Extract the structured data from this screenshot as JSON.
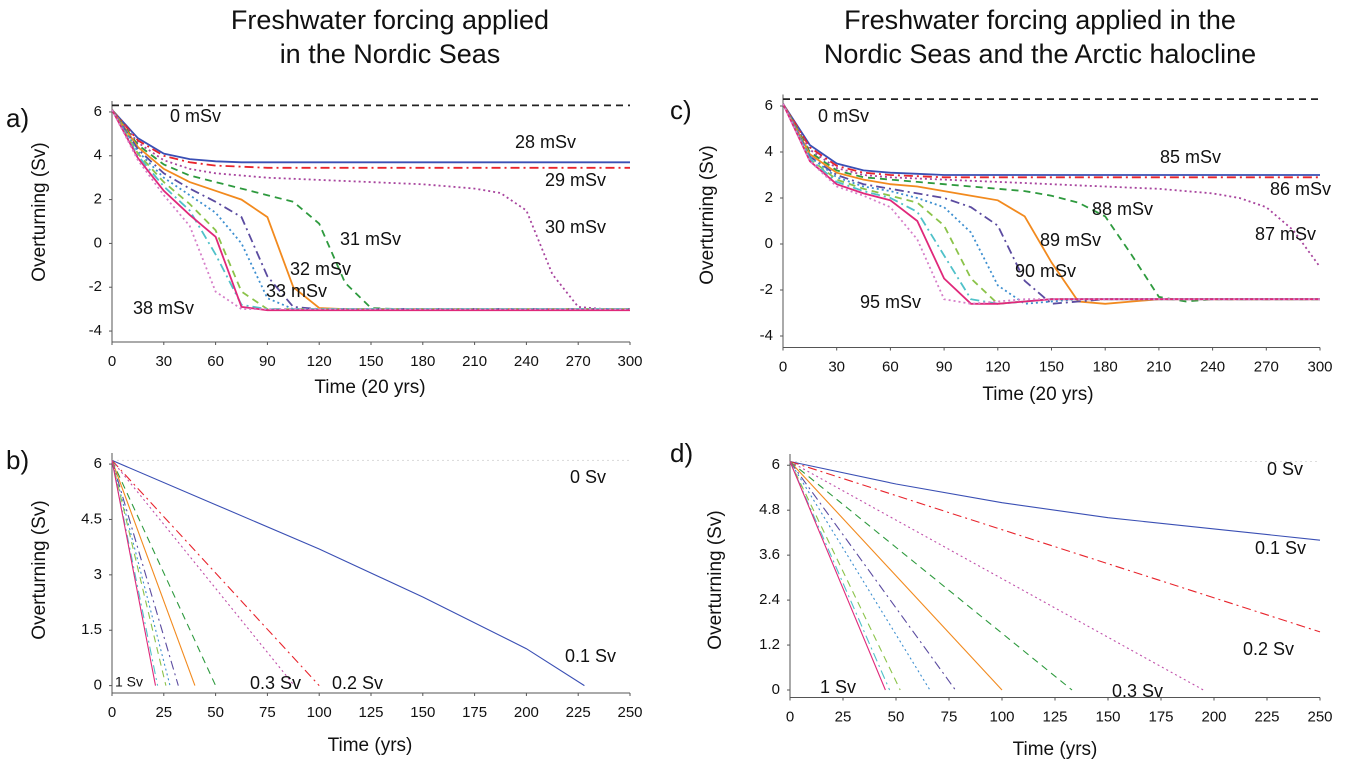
{
  "headings": [
    [
      "Freshwater forcing applied",
      "in the Nordic Seas"
    ],
    [
      "Freshwater forcing applied in the",
      "Nordic Seas and the Arctic halocline"
    ]
  ],
  "chart_data": [
    {
      "type": "line",
      "panel": "a)",
      "xlabel": "Time (20 yrs)",
      "ylabel": "Overturning (Sv)",
      "xlim": [
        0,
        300
      ],
      "xticks": [
        0,
        30,
        60,
        90,
        120,
        150,
        180,
        210,
        240,
        270,
        300
      ],
      "ylim": [
        -4.5,
        6.5
      ],
      "yticks": [
        -4,
        -2,
        0,
        2,
        4,
        6
      ],
      "x": [
        0,
        15,
        30,
        45,
        60,
        75,
        90,
        105,
        120,
        135,
        150,
        165,
        180,
        195,
        210,
        225,
        240,
        255,
        270,
        285,
        300
      ],
      "series": [
        {
          "name": "0 mSv",
          "color": "#222222",
          "dash": "dashed",
          "values": [
            6.3,
            6.3,
            6.3,
            6.3,
            6.3,
            6.3,
            6.3,
            6.3,
            6.3,
            6.3,
            6.3,
            6.3,
            6.3,
            6.3,
            6.3,
            6.3,
            6.3,
            6.3,
            6.3,
            6.3,
            6.3
          ]
        },
        {
          "name": "28 mSv",
          "color": "#3a4fb4",
          "dash": "solid",
          "values": [
            6.1,
            4.8,
            4.1,
            3.85,
            3.75,
            3.7,
            3.7,
            3.7,
            3.7,
            3.7,
            3.7,
            3.7,
            3.7,
            3.7,
            3.7,
            3.7,
            3.7,
            3.7,
            3.7,
            3.7,
            3.7
          ]
        },
        {
          "name": "29 mSv",
          "color": "#e8242c",
          "dash": "dashdot",
          "values": [
            6.1,
            4.7,
            4.0,
            3.7,
            3.55,
            3.5,
            3.45,
            3.45,
            3.45,
            3.45,
            3.45,
            3.45,
            3.45,
            3.45,
            3.45,
            3.45,
            3.45,
            3.45,
            3.45,
            3.45,
            3.45
          ]
        },
        {
          "name": "30 mSv",
          "color": "#a8449e",
          "dash": "dotted",
          "values": [
            6.1,
            4.6,
            3.8,
            3.4,
            3.2,
            3.1,
            3.0,
            2.95,
            2.9,
            2.85,
            2.8,
            2.75,
            2.7,
            2.6,
            2.5,
            2.3,
            1.5,
            -1.4,
            -2.9,
            -3,
            -3
          ]
        },
        {
          "name": "31 mSv",
          "color": "#2e9a3e",
          "dash": "dashed",
          "values": [
            6.1,
            4.5,
            3.6,
            3.1,
            2.8,
            2.5,
            2.2,
            1.9,
            0.9,
            -1.8,
            -2.95,
            -3,
            -3,
            -3,
            -3,
            -3,
            -3,
            -3,
            -3,
            -3,
            -3
          ]
        },
        {
          "name": "32 mSv",
          "color": "#f28a1e",
          "dash": "solid",
          "values": [
            6.1,
            4.4,
            3.4,
            2.8,
            2.4,
            2.0,
            1.2,
            -2.0,
            -2.95,
            -3,
            -3,
            -3,
            -3,
            -3,
            -3,
            -3,
            -3,
            -3,
            -3,
            -3,
            -3
          ]
        },
        {
          "name": "33 mSv",
          "color": "#5b4ba0",
          "dash": "dashdot",
          "values": [
            6.1,
            4.3,
            3.2,
            2.5,
            1.9,
            1.2,
            -1.5,
            -2.9,
            -3,
            -3,
            -3,
            -3,
            -3,
            -3,
            -3,
            -3,
            -3,
            -3,
            -3,
            -3,
            -3
          ]
        },
        {
          "color": "#3d8fd0",
          "dash": "dotted",
          "values": [
            6.1,
            4.2,
            3.0,
            2.2,
            1.4,
            0.0,
            -2.5,
            -3,
            -3,
            -3,
            -3,
            -3,
            -3,
            -3,
            -3,
            -3,
            -3,
            -3,
            -3,
            -3,
            -3
          ]
        },
        {
          "color": "#8bc34a",
          "dash": "dashed",
          "values": [
            6.1,
            4.1,
            2.8,
            1.8,
            0.6,
            -2.2,
            -3,
            -3,
            -3,
            -3,
            -3,
            -3,
            -3,
            -3,
            -3,
            -3,
            -3,
            -3,
            -3,
            -3,
            -3
          ]
        },
        {
          "color": "#4fc1c9",
          "dash": "dashdot",
          "values": [
            6.1,
            4.0,
            2.6,
            1.5,
            -0.5,
            -2.8,
            -3,
            -3,
            -3,
            -3,
            -3,
            -3,
            -3,
            -3,
            -3,
            -3,
            -3,
            -3,
            -3,
            -3,
            -3
          ]
        },
        {
          "color": "#e0287a",
          "dash": "solid",
          "values": [
            6.1,
            3.9,
            2.4,
            1.3,
            0.3,
            -2.9,
            -3.05,
            -3.05,
            -3.05,
            -3.05,
            -3.05,
            -3.05,
            -3.05,
            -3.05,
            -3.05,
            -3.05,
            -3.05,
            -3.05,
            -3.05,
            -3.05,
            -3.05
          ]
        },
        {
          "name": "38 mSv",
          "color": "#d67fc9",
          "dash": "dotted",
          "values": [
            6.1,
            3.8,
            2.2,
            0.8,
            -2.2,
            -3,
            -3,
            -3,
            -3,
            -3,
            -3,
            -3,
            -3,
            -3,
            -3,
            -3,
            -3,
            -3,
            -3,
            -3,
            -3
          ]
        }
      ]
    },
    {
      "type": "line",
      "panel": "b)",
      "xlabel": "Time (yrs)",
      "ylabel": "Overturning (Sv)",
      "xlim": [
        0,
        250
      ],
      "xticks": [
        0,
        25,
        50,
        75,
        100,
        125,
        150,
        175,
        200,
        225,
        250
      ],
      "ylim": [
        -0.2,
        6.3
      ],
      "yticks": [
        0,
        1.5,
        3,
        4.5,
        6
      ],
      "series": [
        {
          "name": "0 Sv",
          "color": "#dddddd",
          "dash": "dotted",
          "x": [
            0,
            250
          ],
          "values": [
            6.1,
            6.1
          ]
        },
        {
          "name": "0.1 Sv",
          "color": "#3a4fb4",
          "dash": "solid",
          "x": [
            0,
            50,
            100,
            150,
            200,
            228
          ],
          "values": [
            6.1,
            4.9,
            3.7,
            2.4,
            1.0,
            0
          ]
        },
        {
          "name": "0.2 Sv",
          "color": "#e8242c",
          "dash": "dashdot",
          "x": [
            0,
            100
          ],
          "values": [
            6.1,
            0
          ]
        },
        {
          "name": "0.3 Sv",
          "color": "#c04faa",
          "dash": "dotted",
          "x": [
            0,
            88
          ],
          "values": [
            6.1,
            0
          ]
        },
        {
          "color": "#2e9a3e",
          "dash": "dashed",
          "x": [
            0,
            50
          ],
          "values": [
            6.1,
            0
          ]
        },
        {
          "color": "#f28a1e",
          "dash": "solid",
          "x": [
            0,
            40
          ],
          "values": [
            6.1,
            0
          ]
        },
        {
          "color": "#5b4ba0",
          "dash": "dashdot",
          "x": [
            0,
            32
          ],
          "values": [
            6.1,
            0
          ]
        },
        {
          "color": "#3d8fd0",
          "dash": "dotted",
          "x": [
            0,
            28
          ],
          "values": [
            6.1,
            0
          ]
        },
        {
          "color": "#8bc34a",
          "dash": "dashed",
          "x": [
            0,
            26
          ],
          "values": [
            6.1,
            0
          ]
        },
        {
          "color": "#4fc1c9",
          "dash": "dashdot",
          "x": [
            0,
            22
          ],
          "values": [
            6.1,
            0
          ]
        },
        {
          "name": "1 Sv",
          "color": "#e0287a",
          "dash": "solid",
          "x": [
            0,
            21
          ],
          "values": [
            6.1,
            0
          ]
        }
      ]
    },
    {
      "type": "line",
      "panel": "c)",
      "xlabel": "Time (20 yrs)",
      "ylabel": "Overturning (Sv)",
      "xlim": [
        0,
        300
      ],
      "xticks": [
        0,
        30,
        60,
        90,
        120,
        150,
        180,
        210,
        240,
        270,
        300
      ],
      "ylim": [
        -4.5,
        6.5
      ],
      "yticks": [
        -4,
        -2,
        0,
        2,
        4,
        6
      ],
      "x": [
        0,
        15,
        30,
        45,
        60,
        75,
        90,
        105,
        120,
        135,
        150,
        165,
        180,
        195,
        210,
        225,
        240,
        255,
        270,
        285,
        300
      ],
      "series": [
        {
          "name": "0 mSv",
          "color": "#222222",
          "dash": "dashed",
          "values": [
            6.3,
            6.3,
            6.3,
            6.3,
            6.3,
            6.3,
            6.3,
            6.3,
            6.3,
            6.3,
            6.3,
            6.3,
            6.3,
            6.3,
            6.3,
            6.3,
            6.3,
            6.3,
            6.3,
            6.3,
            6.3
          ]
        },
        {
          "name": "85 mSv",
          "color": "#3a4fb4",
          "dash": "solid",
          "values": [
            6.1,
            4.3,
            3.5,
            3.2,
            3.1,
            3.05,
            3,
            3,
            3,
            3,
            3,
            3,
            3,
            3,
            3,
            3,
            3,
            3,
            3,
            3,
            3
          ]
        },
        {
          "name": "86 mSv",
          "color": "#e8242c",
          "dash": "dashdot",
          "values": [
            6.1,
            4.2,
            3.4,
            3.1,
            3.0,
            2.95,
            2.9,
            2.9,
            2.9,
            2.9,
            2.9,
            2.9,
            2.9,
            2.9,
            2.9,
            2.9,
            2.9,
            2.9,
            2.9,
            2.9,
            2.9
          ]
        },
        {
          "name": "87 mSv",
          "color": "#a8449e",
          "dash": "dotted",
          "values": [
            6.1,
            4.1,
            3.3,
            3.0,
            2.9,
            2.85,
            2.8,
            2.75,
            2.7,
            2.65,
            2.6,
            2.55,
            2.5,
            2.45,
            2.4,
            2.3,
            2.2,
            2.0,
            1.6,
            0.6,
            -1.0
          ]
        },
        {
          "name": "88 mSv",
          "color": "#2e9a3e",
          "dash": "dashed",
          "values": [
            6.1,
            4.0,
            3.2,
            2.9,
            2.8,
            2.7,
            2.6,
            2.5,
            2.4,
            2.3,
            2.1,
            1.8,
            1.2,
            -0.5,
            -2.3,
            -2.5,
            -2.4,
            -2.4,
            -2.4,
            -2.4,
            -2.4
          ]
        },
        {
          "name": "89 mSv",
          "color": "#f28a1e",
          "dash": "solid",
          "values": [
            6.1,
            3.9,
            3.1,
            2.8,
            2.6,
            2.5,
            2.3,
            2.1,
            1.9,
            1.2,
            -0.8,
            -2.5,
            -2.6,
            -2.5,
            -2.4,
            -2.4,
            -2.4,
            -2.4,
            -2.4,
            -2.4,
            -2.4
          ]
        },
        {
          "name": "90 mSv",
          "color": "#5b4ba0",
          "dash": "dashdot",
          "values": [
            6.1,
            3.8,
            3.0,
            2.6,
            2.4,
            2.2,
            2.0,
            1.6,
            0.8,
            -1.6,
            -2.6,
            -2.5,
            -2.4,
            -2.4,
            -2.4,
            -2.4,
            -2.4,
            -2.4,
            -2.4,
            -2.4,
            -2.4
          ]
        },
        {
          "color": "#3d8fd0",
          "dash": "dotted",
          "values": [
            6.1,
            3.8,
            2.9,
            2.5,
            2.3,
            2.0,
            1.6,
            0.5,
            -1.8,
            -2.6,
            -2.5,
            -2.4,
            -2.4,
            -2.4,
            -2.4,
            -2.4,
            -2.4,
            -2.4,
            -2.4,
            -2.4,
            -2.4
          ]
        },
        {
          "color": "#8bc34a",
          "dash": "dashed",
          "values": [
            6.1,
            3.7,
            2.8,
            2.4,
            2.1,
            1.8,
            0.8,
            -1.5,
            -2.6,
            -2.5,
            -2.4,
            -2.4,
            -2.4,
            -2.4,
            -2.4,
            -2.4,
            -2.4,
            -2.4,
            -2.4,
            -2.4,
            -2.4
          ]
        },
        {
          "color": "#4fc1c9",
          "dash": "dashdot",
          "values": [
            6.1,
            3.7,
            2.7,
            2.3,
            2.0,
            1.4,
            -0.5,
            -2.4,
            -2.6,
            -2.5,
            -2.4,
            -2.4,
            -2.4,
            -2.4,
            -2.4,
            -2.4,
            -2.4,
            -2.4,
            -2.4,
            -2.4,
            -2.4
          ]
        },
        {
          "color": "#e0287a",
          "dash": "solid",
          "values": [
            6.1,
            3.6,
            2.6,
            2.2,
            1.9,
            1.0,
            -1.5,
            -2.6,
            -2.6,
            -2.5,
            -2.4,
            -2.4,
            -2.4,
            -2.4,
            -2.4,
            -2.4,
            -2.4,
            -2.4,
            -2.4,
            -2.4,
            -2.4
          ]
        },
        {
          "name": "95 mSv",
          "color": "#d67fc9",
          "dash": "dotted",
          "values": [
            6.1,
            3.6,
            2.5,
            2.1,
            1.6,
            0.2,
            -2.4,
            -2.6,
            -2.5,
            -2.4,
            -2.4,
            -2.4,
            -2.4,
            -2.4,
            -2.4,
            -2.4,
            -2.4,
            -2.4,
            -2.4,
            -2.4,
            -2.4
          ]
        }
      ]
    },
    {
      "type": "line",
      "panel": "d)",
      "xlabel": "Time (yrs)",
      "ylabel": "Overturning (Sv)",
      "xlim": [
        0,
        250
      ],
      "xticks": [
        0,
        25,
        50,
        75,
        100,
        125,
        150,
        175,
        200,
        225,
        250
      ],
      "ylim": [
        -0.2,
        6.3
      ],
      "yticks": [
        0,
        1.2,
        2.4,
        3.6,
        4.8,
        6
      ],
      "series": [
        {
          "name": "0 Sv",
          "color": "#dddddd",
          "dash": "dotted",
          "x": [
            0,
            250
          ],
          "values": [
            6.1,
            6.1
          ]
        },
        {
          "name": "0.1 Sv",
          "color": "#3a4fb4",
          "dash": "solid",
          "x": [
            0,
            50,
            100,
            150,
            200,
            250
          ],
          "values": [
            6.1,
            5.5,
            5.0,
            4.6,
            4.3,
            4.0
          ]
        },
        {
          "name": "0.2 Sv",
          "color": "#e8242c",
          "dash": "dashdot",
          "x": [
            0,
            250
          ],
          "values": [
            6.1,
            1.55
          ]
        },
        {
          "name": "0.3 Sv",
          "color": "#c04faa",
          "dash": "dotted",
          "x": [
            0,
            195
          ],
          "values": [
            6.1,
            0
          ]
        },
        {
          "color": "#2e9a3e",
          "dash": "dashed",
          "x": [
            0,
            133
          ],
          "values": [
            6.1,
            0
          ]
        },
        {
          "color": "#f28a1e",
          "dash": "solid",
          "x": [
            0,
            100
          ],
          "values": [
            6.1,
            0
          ]
        },
        {
          "color": "#5b4ba0",
          "dash": "dashdot",
          "x": [
            0,
            78
          ],
          "values": [
            6.1,
            0
          ]
        },
        {
          "color": "#3d8fd0",
          "dash": "dotted",
          "x": [
            0,
            66
          ],
          "values": [
            6.1,
            0
          ]
        },
        {
          "color": "#8bc34a",
          "dash": "dashed",
          "x": [
            0,
            52
          ],
          "values": [
            6.1,
            0
          ]
        },
        {
          "color": "#4fc1c9",
          "dash": "dashdot",
          "x": [
            0,
            47
          ],
          "values": [
            6.1,
            0
          ]
        },
        {
          "name": "1 Sv",
          "color": "#e0287a",
          "dash": "solid",
          "x": [
            0,
            45
          ],
          "values": [
            6.1,
            0
          ]
        }
      ]
    }
  ]
}
